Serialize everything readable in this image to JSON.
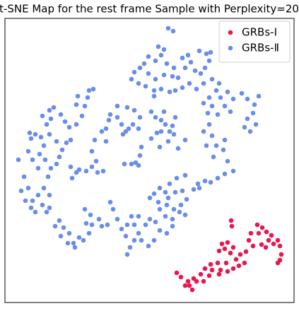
{
  "chart_data": {
    "type": "scatter",
    "title": "t-SNE Map for the rest frame Sample with Perplexity=20",
    "xlim": [
      7,
      416
    ],
    "ylim": [
      0,
      402
    ],
    "legend": "upper right",
    "series": [
      {
        "name": "GRBs-Ⅰ",
        "color": "#e8174f",
        "x": [
          327,
          328,
          364,
          371,
          366,
          377,
          384,
          380,
          387,
          393,
          396,
          355,
          352,
          358,
          398,
          393,
          396,
          314,
          322,
          330,
          318,
          310,
          326,
          340,
          334,
          346,
          338,
          330,
          320,
          308,
          298,
          290,
          300,
          312,
          322,
          296,
          284,
          310,
          288,
          278,
          266,
          272,
          268,
          256,
          250,
          262,
          274,
          348,
          370,
          376
        ],
        "values": [
          116,
          108,
          110,
          106,
          98,
          100,
          95,
          88,
          83,
          88,
          80,
          98,
          88,
          80,
          68,
          56,
          60,
          83,
          85,
          78,
          76,
          73,
          70,
          68,
          61,
          56,
          52,
          48,
          56,
          56,
          54,
          48,
          46,
          46,
          44,
          38,
          40,
          40,
          30,
          30,
          30,
          18,
          24,
          36,
          42,
          24,
          34,
          72,
          82,
          78
        ]
      },
      {
        "name": "GRBs-Ⅱ",
        "color": "#6a8ee8",
        "x": [
          238,
          245,
          232,
          224,
          228,
          210,
          204,
          220,
          236,
          246,
          258,
          266,
          270,
          282,
          292,
          298,
          296,
          290,
          276,
          262,
          252,
          244,
          232,
          220,
          210,
          198,
          190,
          186,
          196,
          206,
          218,
          228,
          240,
          248,
          258,
          268,
          278,
          288,
          284,
          300,
          310,
          306,
          296,
          288,
          294,
          300,
          312,
          322,
          330,
          318,
          326,
          342,
          350,
          360,
          366,
          358,
          350,
          346,
          354,
          362,
          308,
          296,
          288,
          300,
          292,
          306,
          318,
          316,
          302,
          322,
          330,
          318,
          308,
          298,
          290,
          280,
          274,
          282,
          262,
          250,
          240,
          234,
          226,
          218,
          212,
          224,
          236,
          246,
          256,
          264,
          258,
          248,
          238,
          226,
          234,
          244,
          254,
          262,
          244,
          236,
          226,
          218,
          210,
          200,
          196,
          190,
          184,
          178,
          172,
          180,
          186,
          190,
          196,
          206,
          212,
          220,
          166,
          160,
          156,
          152,
          144,
          140,
          128,
          130,
          126,
          118,
          112,
          104,
          98,
          90,
          84,
          78,
          86,
          96,
          106,
          122,
          120,
          180,
          26,
          34,
          40,
          30,
          36,
          44,
          50,
          46,
          54,
          60,
          66,
          70,
          70,
          62,
          68,
          54,
          46,
          40,
          44,
          42,
          50,
          58,
          62,
          56,
          64,
          72,
          80,
          84,
          88,
          94,
          100,
          80,
          70,
          66,
          72,
          60,
          70,
          76,
          86,
          92,
          98,
          108,
          116,
          120,
          126,
          132,
          124,
          110,
          108,
          100,
          108,
          102,
          112,
          122,
          130,
          138,
          146,
          136,
          130,
          134,
          144,
          150,
          154,
          166,
          172,
          178,
          174,
          182,
          188,
          196,
          198,
          190,
          180,
          166,
          156,
          214,
          220,
          228,
          234,
          240,
          228,
          222,
          246,
          244,
          248,
          232,
          214,
          226,
          238,
          252,
          262,
          200,
          192,
          186,
          176,
          196,
          198,
          218,
          150
        ],
        "values": [
          388,
          384,
          358,
          362,
          350,
          348,
          338,
          342,
          338,
          332,
          346,
          350,
          340,
          356,
          352,
          354,
          342,
          332,
          328,
          332,
          318,
          320,
          322,
          316,
          324,
          332,
          326,
          316,
          310,
          306,
          300,
          302,
          298,
          300,
          304,
          310,
          302,
          310,
          324,
          316,
          310,
          300,
          290,
          282,
          268,
          278,
          290,
          298,
          288,
          278,
          270,
          296,
          288,
          280,
          292,
          268,
          260,
          248,
          242,
          252,
          266,
          252,
          242,
          236,
          222,
          222,
          230,
          216,
          206,
          200,
          186,
          182,
          176,
          170,
          172,
          168,
          160,
          162,
          180,
          176,
          168,
          156,
          162,
          154,
          148,
          142,
          138,
          132,
          138,
          146,
          158,
          156,
          148,
          132,
          122,
          118,
          128,
          124,
          108,
          98,
          102,
          88,
          80,
          88,
          98,
          88,
          78,
          94,
          104,
          110,
          122,
          110,
          122,
          110,
          118,
          114,
          118,
          132,
          142,
          110,
          108,
          118,
          124,
          110,
          98,
          88,
          92,
          84,
          98,
          106,
          116,
          108,
          94,
          84,
          78,
          112,
          132,
          68,
          202,
          178,
          162,
          158,
          144,
          134,
          128,
          144,
          152,
          138,
          128,
          134,
          152,
          162,
          178,
          190,
          202,
          214,
          232,
          240,
          238,
          234,
          222,
          210,
          202,
          190,
          196,
          206,
          216,
          226,
          230,
          228,
          238,
          252,
          260,
          264,
          272,
          276,
          266,
          256,
          248,
          252,
          264,
          278,
          300,
          302,
          290,
          292,
          280,
          192,
          184,
          176,
          188,
          186,
          192,
          184,
          186,
          200,
          214,
          230,
          242,
          246,
          258,
          262,
          252,
          242,
          238,
          246,
          252,
          246,
          262,
          272,
          276,
          278,
          266,
          270,
          262,
          258,
          252,
          242,
          242,
          240,
          238,
          250,
          262,
          270,
          232,
          220,
          228,
          218,
          230,
          220,
          198,
          196,
          196,
          194,
          208,
          292,
          228
        ]
      }
    ]
  }
}
